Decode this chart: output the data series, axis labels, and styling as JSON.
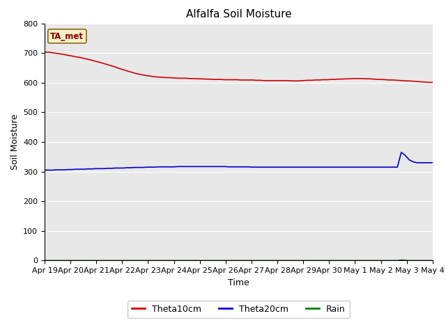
{
  "title": "Alfalfa Soil Moisture",
  "xlabel": "Time",
  "ylabel": "Soil Moisture",
  "ylim": [
    0,
    800
  ],
  "yticks": [
    0,
    100,
    200,
    300,
    400,
    500,
    600,
    700,
    800
  ],
  "xtick_labels": [
    "Apr 19",
    "Apr 20",
    "Apr 21",
    "Apr 22",
    "Apr 23",
    "Apr 24",
    "Apr 25",
    "Apr 26",
    "Apr 27",
    "Apr 28",
    "Apr 29",
    "Apr 30",
    "May 1",
    "May 2",
    "May 3",
    "May 4"
  ],
  "annotation_text": "TA_met",
  "background_color": "#e8e8e8",
  "fig_background": "#ffffff",
  "legend_entries": [
    "Theta10cm",
    "Theta20cm",
    "Rain"
  ],
  "line_colors": [
    "#cc0000",
    "#0000cc",
    "#008000"
  ],
  "theta10cm": [
    703,
    703,
    701,
    699,
    697,
    695,
    692,
    690,
    687,
    685,
    682,
    679,
    676,
    672,
    669,
    665,
    661,
    657,
    653,
    648,
    644,
    640,
    636,
    632,
    629,
    626,
    624,
    622,
    620,
    619,
    618,
    617,
    617,
    616,
    615,
    615,
    615,
    614,
    614,
    613,
    613,
    612,
    612,
    611,
    611,
    611,
    610,
    610,
    610,
    610,
    609,
    609,
    609,
    609,
    608,
    608,
    607,
    607,
    607,
    607,
    607,
    607,
    607,
    606,
    606,
    606,
    607,
    608,
    608,
    609,
    609,
    610,
    610,
    611,
    611,
    612,
    612,
    613,
    613,
    614,
    614,
    614,
    613,
    613,
    612,
    611,
    611,
    610,
    609,
    609,
    608,
    607,
    606,
    606,
    605,
    604,
    603,
    602,
    601,
    601
  ],
  "theta20cm": [
    305,
    305,
    305,
    306,
    306,
    306,
    307,
    307,
    308,
    308,
    308,
    309,
    309,
    310,
    310,
    310,
    311,
    311,
    312,
    312,
    312,
    313,
    313,
    314,
    314,
    314,
    315,
    315,
    315,
    316,
    316,
    316,
    316,
    316,
    317,
    317,
    317,
    317,
    317,
    317,
    317,
    317,
    317,
    317,
    317,
    317,
    317,
    316,
    316,
    316,
    316,
    316,
    316,
    315,
    315,
    315,
    315,
    315,
    315,
    315,
    315,
    315,
    315,
    315,
    315,
    315,
    315,
    315,
    315,
    315,
    315,
    315,
    315,
    315,
    315,
    315,
    315,
    315,
    315,
    315,
    315,
    315,
    315,
    315,
    315,
    315,
    315,
    315,
    315,
    315,
    315,
    365,
    355,
    340,
    333,
    330,
    330,
    330,
    330,
    330
  ],
  "rain": [
    0,
    0,
    0,
    0,
    0,
    0,
    0,
    0,
    0,
    0,
    0,
    0,
    0,
    0,
    0,
    0,
    0,
    0,
    0,
    0,
    0,
    0,
    0,
    0,
    0,
    0,
    0,
    0,
    0,
    0,
    0,
    0,
    0,
    0,
    0,
    0,
    0,
    0,
    0,
    0,
    0,
    0,
    0,
    0,
    0,
    0,
    0,
    0,
    0,
    0,
    0,
    0,
    0,
    0,
    0,
    0,
    0,
    0,
    0,
    0,
    0,
    0,
    0,
    0,
    0,
    0,
    0,
    0,
    0,
    0,
    0,
    0,
    0,
    0,
    0,
    0,
    0,
    0,
    0,
    0,
    0,
    0,
    0,
    0,
    0,
    0,
    0,
    0,
    0,
    0,
    0,
    2,
    1,
    0,
    0,
    0,
    0,
    0,
    0,
    0
  ],
  "n_points": 100
}
